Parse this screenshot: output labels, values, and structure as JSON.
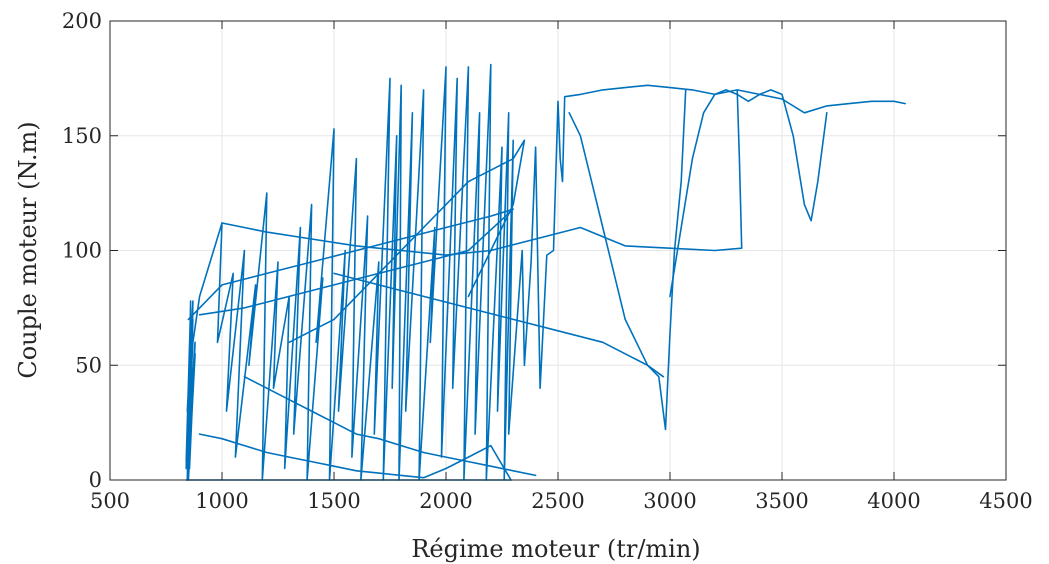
{
  "chart_data": {
    "type": "line",
    "title": "",
    "xlabel": "Régime moteur (tr/min)",
    "ylabel": "Couple moteur (N.m)",
    "xlim": [
      500,
      4500
    ],
    "ylim": [
      0,
      200
    ],
    "xticks": [
      500,
      1000,
      1500,
      2000,
      2500,
      3000,
      3500,
      4000,
      4500
    ],
    "xtick_labels": [
      "500",
      "1000",
      "1500",
      "2000",
      "2500",
      "3000",
      "3500",
      "4000",
      "4500"
    ],
    "yticks": [
      0,
      50,
      100,
      150,
      200
    ],
    "ytick_labels": [
      "0",
      "50",
      "100",
      "150",
      "200"
    ],
    "grid": true,
    "legend": "none",
    "color": "#0072bd",
    "series": [
      {
        "x": [
          840,
          860,
          850,
          870,
          845,
          865,
          850,
          880,
          845,
          870,
          855,
          880,
          850,
          860,
          845,
          870,
          850,
          860,
          840,
          870,
          900,
          1000,
          980,
          1050,
          1020,
          1100,
          1060,
          1150,
          1120,
          1200,
          1180,
          1250,
          1230,
          1300,
          1280,
          1350,
          1320,
          1400,
          1380,
          1450,
          1420,
          1500,
          1480,
          1550,
          1520,
          1600,
          1580,
          1650,
          1620,
          1700,
          1680,
          1750,
          1720,
          1780,
          1760,
          1800,
          1790,
          1850,
          1820,
          1900,
          1880,
          1950,
          1930,
          2000,
          1980,
          2050,
          2030,
          2100,
          2080,
          2150,
          2130,
          2200,
          2180,
          2250,
          2230,
          2280,
          2260,
          2300,
          2280,
          2340,
          2350,
          2380,
          2400,
          2420,
          2450,
          2480,
          2500,
          2510,
          2520,
          2530,
          2600,
          2700,
          2800,
          2900,
          3000,
          3100,
          3150,
          3200,
          3250,
          3300,
          3400,
          3500,
          3600,
          3700,
          3800,
          3900,
          4000,
          4050
        ],
        "y": [
          8,
          75,
          40,
          78,
          10,
          65,
          0,
          55,
          30,
          78,
          5,
          60,
          20,
          78,
          0,
          70,
          15,
          75,
          5,
          60,
          80,
          112,
          60,
          90,
          30,
          100,
          10,
          85,
          50,
          125,
          0,
          95,
          40,
          80,
          5,
          110,
          20,
          120,
          0,
          88,
          60,
          153,
          0,
          100,
          30,
          140,
          10,
          115,
          0,
          95,
          20,
          175,
          0,
          150,
          40,
          172,
          0,
          160,
          30,
          170,
          0,
          110,
          60,
          180,
          10,
          175,
          40,
          180,
          0,
          160,
          20,
          181,
          0,
          145,
          30,
          160,
          0,
          148,
          20,
          100,
          50,
          95,
          145,
          40,
          98,
          100,
          165,
          140,
          130,
          167,
          168,
          170,
          171,
          172,
          171,
          170,
          169,
          168,
          169,
          170,
          168,
          166,
          160,
          163,
          164,
          165,
          165,
          164
        ]
      },
      {
        "x": [
          850,
          1000,
          1200,
          1400,
          1600,
          1800,
          2000,
          2200,
          2300,
          2100,
          1900,
          1700,
          1500,
          1300,
          1100,
          900
        ],
        "y": [
          70,
          85,
          90,
          95,
          100,
          105,
          110,
          115,
          118,
          100,
          95,
          90,
          85,
          80,
          75,
          72
        ]
      },
      {
        "x": [
          1000,
          1200,
          1400,
          1600,
          1800,
          2000,
          2200,
          2400,
          2600,
          2800,
          3000,
          3200,
          3320,
          3310,
          3300
        ],
        "y": [
          112,
          108,
          105,
          102,
          100,
          98,
          100,
          105,
          110,
          102,
          101,
          100,
          101,
          140,
          170
        ]
      },
      {
        "x": [
          2550,
          2600,
          2650,
          2700,
          2750,
          2800,
          2850,
          2900,
          2950,
          2980,
          3000,
          3020,
          3050,
          3070
        ],
        "y": [
          160,
          150,
          130,
          110,
          90,
          70,
          60,
          50,
          45,
          22,
          64,
          100,
          130,
          170
        ]
      },
      {
        "x": [
          3000,
          3050,
          3100,
          3150,
          3200,
          3250,
          3300,
          3350,
          3400,
          3450,
          3500,
          3550,
          3600,
          3630,
          3660,
          3700
        ],
        "y": [
          80,
          110,
          140,
          160,
          168,
          170,
          168,
          165,
          168,
          170,
          168,
          150,
          120,
          113,
          130,
          160
        ]
      },
      {
        "x": [
          1100,
          1200,
          1300,
          1400,
          1500,
          1600,
          1700,
          1800,
          1900,
          2000,
          2100,
          2200,
          2300,
          2400
        ],
        "y": [
          45,
          40,
          35,
          30,
          25,
          20,
          18,
          15,
          12,
          10,
          8,
          6,
          4,
          2
        ]
      },
      {
        "x": [
          900,
          1000,
          1100,
          1200,
          1300,
          1400,
          1500,
          1600,
          1700,
          1800,
          1900,
          2000,
          2100,
          2200,
          2290
        ],
        "y": [
          20,
          18,
          15,
          12,
          10,
          8,
          6,
          4,
          3,
          2,
          1,
          5,
          10,
          15,
          0
        ]
      },
      {
        "x": [
          1500,
          1700,
          1900,
          2100,
          2300,
          2500,
          2700,
          2900,
          2970
        ],
        "y": [
          90,
          85,
          80,
          75,
          70,
          65,
          60,
          50,
          45
        ]
      },
      {
        "x": [
          1300,
          1500,
          1700,
          1900,
          2100,
          2300,
          2350,
          2300,
          2200,
          2100
        ],
        "y": [
          60,
          70,
          90,
          110,
          130,
          140,
          148,
          120,
          100,
          80
        ]
      },
      {
        "x": [
          840,
          2290
        ],
        "y": [
          0,
          0
        ]
      }
    ]
  }
}
